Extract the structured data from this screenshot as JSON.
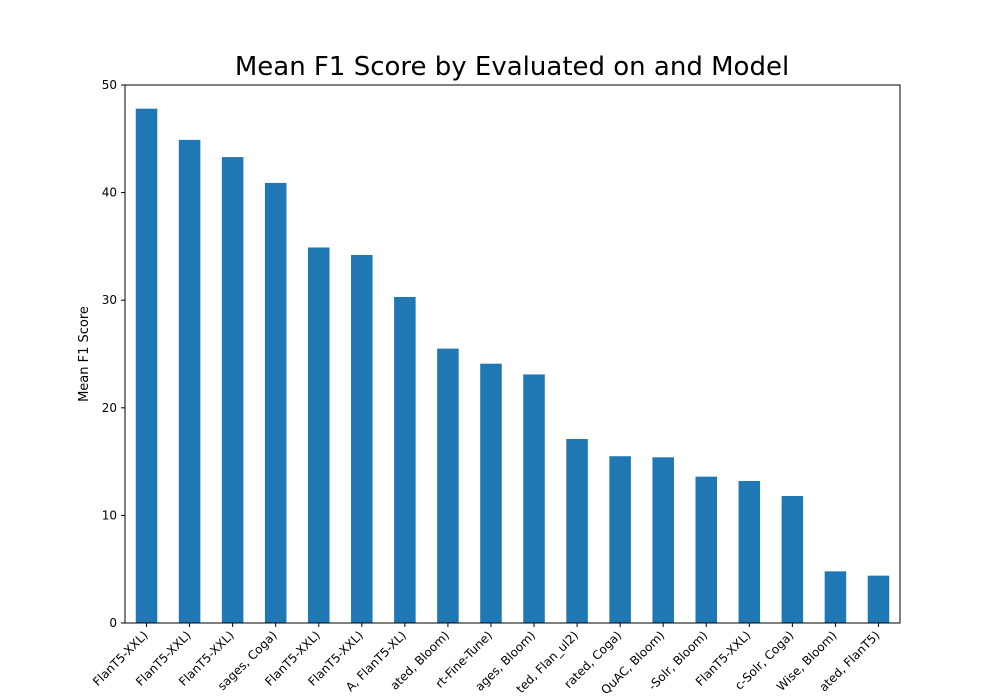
{
  "chart_data": {
    "type": "bar",
    "title": "Mean F1 Score by Evaluated on and Model",
    "xlabel": "",
    "ylabel": "Mean F1 Score",
    "ylim": [
      0,
      50
    ],
    "yticks": [
      0,
      10,
      20,
      30,
      40,
      50
    ],
    "grid": false,
    "bar_color": "#1f77b4",
    "categories": [
      "FlanT5-XXL)",
      "FlanT5-XXL)",
      "FlanT5-XXL)",
      "sages, Coga)",
      "FlanT5-XXL)",
      "FlanT5-XXL)",
      "A, FlanT5-XL)",
      "ated, Bloom)",
      "rt-Fine-Tune)",
      "ages, Bloom)",
      "ted, Flan_ul2)",
      "rated, Coga)",
      "QuAC, Bloom)",
      "-Solr, Bloom)",
      "FlanT5-XXL)",
      "c-Solr, Coga)",
      "Wise, Bloom)",
      "ated, FlanT5)"
    ],
    "values": [
      47.8,
      44.9,
      43.3,
      40.9,
      34.9,
      34.2,
      30.3,
      25.5,
      24.1,
      23.1,
      17.1,
      15.5,
      15.4,
      13.6,
      13.2,
      11.8,
      4.8,
      4.4
    ]
  }
}
